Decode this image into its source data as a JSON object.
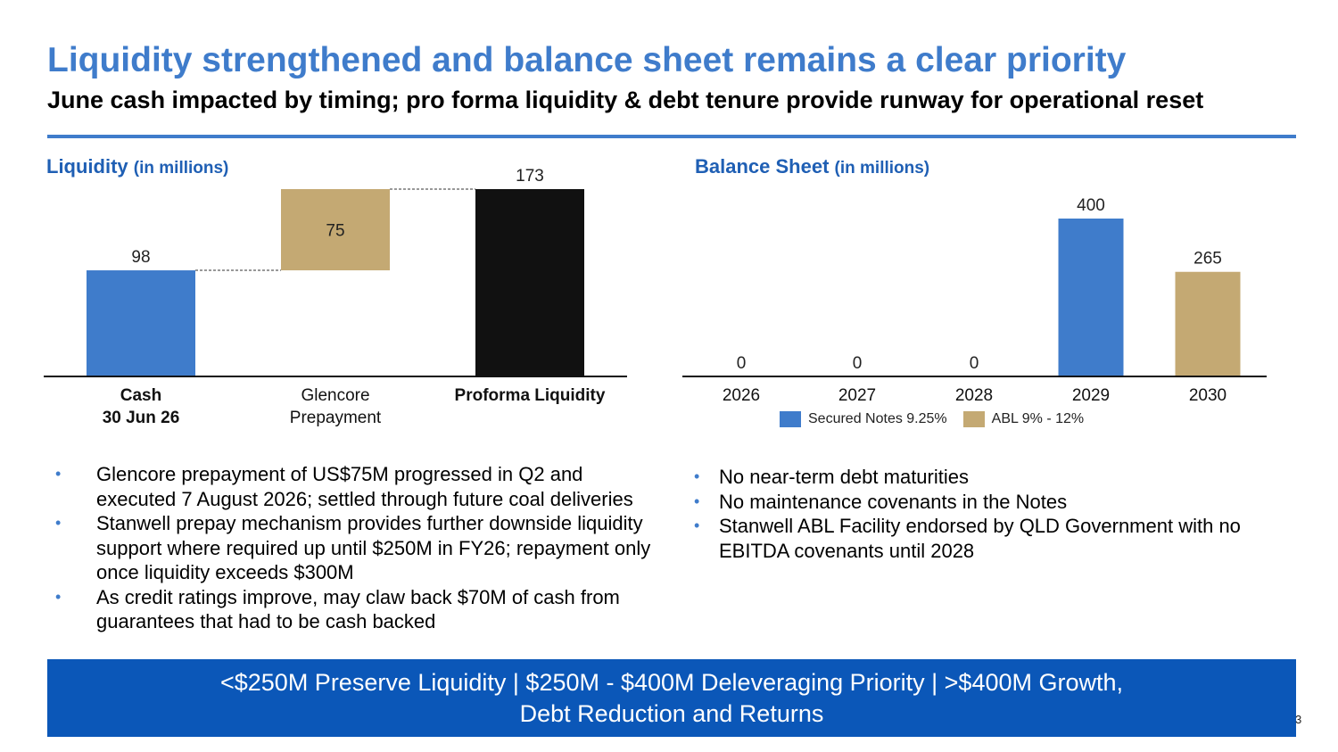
{
  "header": {
    "title": "Liquidity strengthened and balance sheet remains a clear priority",
    "subtitle": "June cash impacted by timing; pro forma liquidity & debt tenure provide runway for operational reset"
  },
  "liquidity": {
    "heading": "Liquidity",
    "unit": "(in millions)",
    "bullets": [
      "Glencore prepayment of US$75M progressed in Q2 and executed 7 August 2026; settled through future coal deliveries",
      "Stanwell prepay mechanism provides further downside liquidity support where required up until $250M in FY26; repayment only once liquidity exceeds $300M",
      "As credit ratings improve, may claw back $70M of cash from guarantees that had to be cash backed"
    ]
  },
  "balance_sheet": {
    "heading": "Balance Sheet",
    "unit": "(in millions)",
    "bullets": [
      "No near-term debt maturities",
      "No maintenance covenants in the Notes",
      "Stanwell ABL Facility endorsed by QLD Government with no EBITDA covenants until 2028"
    ]
  },
  "chart_data": [
    {
      "type": "bar",
      "subtype": "waterfall",
      "categories": [
        {
          "lines": [
            "Cash",
            "30 Jun 26"
          ],
          "bold": true
        },
        {
          "lines": [
            "Glencore",
            "Prepayment"
          ],
          "bold": false
        },
        {
          "lines": [
            "Proforma Liquidity"
          ],
          "bold": true
        }
      ],
      "values": [
        98,
        75,
        173
      ],
      "bases": [
        0,
        98,
        0
      ],
      "labels": [
        "98",
        "75",
        "173"
      ],
      "colors": [
        "#3f7ccb",
        "#c4a973",
        "#111111"
      ],
      "ylim": [
        0,
        173
      ],
      "grid": false,
      "connectors": true
    },
    {
      "type": "bar",
      "categories": [
        "2026",
        "2027",
        "2028",
        "2029",
        "2030"
      ],
      "series": [
        {
          "name": "Secured Notes 9.25%",
          "color": "#3f7ccb",
          "values": [
            0,
            0,
            0,
            400,
            0
          ]
        },
        {
          "name": "ABL 9% - 12%",
          "color": "#c4a973",
          "values": [
            0,
            0,
            0,
            0,
            265
          ]
        }
      ],
      "labels": [
        "0",
        "0",
        "0",
        "400",
        "265"
      ],
      "ylim": [
        0,
        400
      ],
      "grid": false,
      "legend": "bottom"
    }
  ],
  "banner": {
    "line1": "<$250M Preserve Liquidity | $250M - $400M Deleveraging Priority | >$400M Growth,",
    "line2": "Debt Reduction and Returns"
  },
  "page_number": "3"
}
